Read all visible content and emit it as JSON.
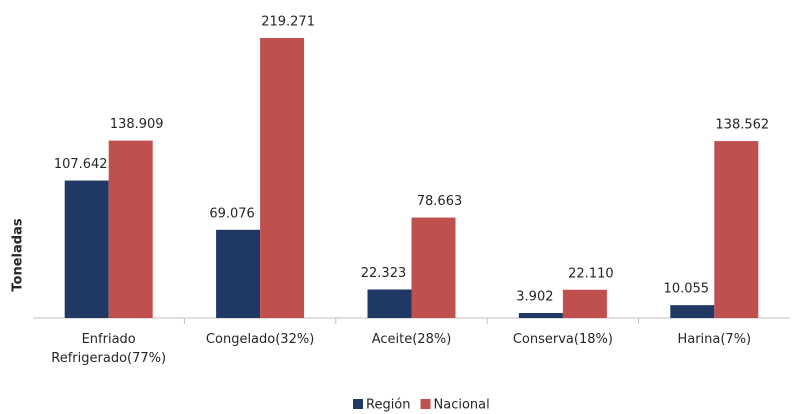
{
  "chart_data": {
    "type": "bar",
    "y_label": "Toneladas",
    "categories": [
      "Enfriado Refrigerado(77%)",
      "Congelado(32%)",
      "Aceite(28%)",
      "Conserva(18%)",
      "Harina(7%)"
    ],
    "series": [
      {
        "name": "Región",
        "color": "#1f3864",
        "values": [
          107642,
          69076,
          22323,
          3902,
          10055
        ],
        "value_labels": [
          "107.642",
          "69.076",
          "22.323",
          "3.902",
          "10.055"
        ]
      },
      {
        "name": "Nacional",
        "color": "#c0504d",
        "values": [
          138909,
          219271,
          78663,
          22110,
          138562
        ],
        "value_labels": [
          "138.909",
          "219.271",
          "78.663",
          "22.110",
          "138.562"
        ]
      }
    ],
    "legend": "bottom"
  }
}
